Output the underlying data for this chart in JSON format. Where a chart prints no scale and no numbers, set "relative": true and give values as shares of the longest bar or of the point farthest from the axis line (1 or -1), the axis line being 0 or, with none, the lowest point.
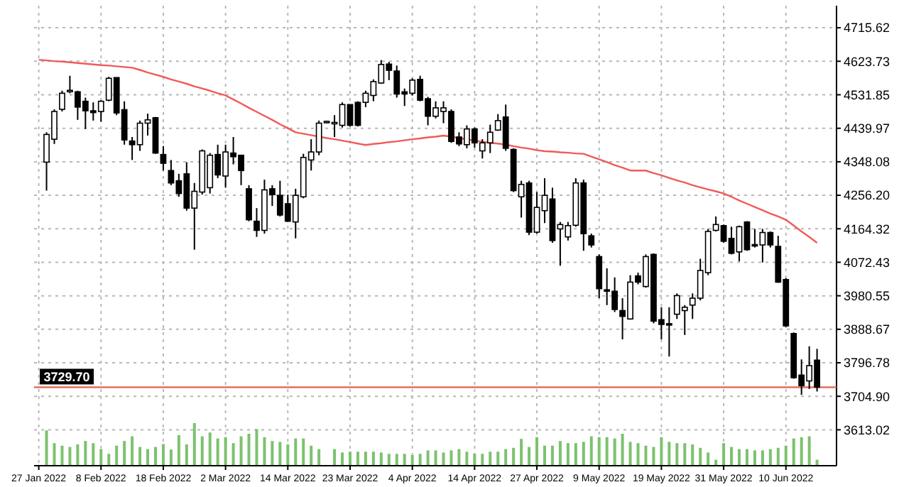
{
  "chart_data": [
    {
      "type": "candlestick",
      "categories": [
        "27 Jan 2022",
        null,
        null,
        null,
        null,
        null,
        null,
        null,
        "8 Feb 2022",
        null,
        null,
        null,
        null,
        null,
        null,
        null,
        "18 Feb 2022",
        null,
        null,
        null,
        null,
        null,
        null,
        null,
        "2 Mar 2022",
        null,
        null,
        null,
        null,
        null,
        null,
        null,
        "14 Mar 2022",
        null,
        null,
        null,
        null,
        null,
        null,
        null,
        "23 Mar 2022",
        null,
        null,
        null,
        null,
        null,
        null,
        null,
        "4 Apr 2022",
        null,
        null,
        null,
        null,
        null,
        null,
        null,
        "14 Apr 2022",
        null,
        null,
        null,
        null,
        null,
        null,
        null,
        "27 Apr 2022",
        null,
        null,
        null,
        null,
        null,
        null,
        null,
        "9 May 2022",
        null,
        null,
        null,
        null,
        null,
        null,
        null,
        "19 May 2022",
        null,
        null,
        null,
        null,
        null,
        null,
        null,
        "31 May 2022",
        null,
        null,
        null,
        null,
        null,
        null,
        null,
        "10 Jun 2022",
        null,
        null,
        null,
        null
      ],
      "ohlc": [
        null,
        [
          4347,
          4429,
          4269,
          4423
        ],
        [
          4410,
          4492,
          4397,
          4486
        ],
        [
          4492,
          4543,
          4486,
          4536
        ],
        [
          4541,
          4584,
          4536,
          4544
        ],
        [
          4540,
          4543,
          4463,
          4498
        ],
        [
          4514,
          4524,
          4438,
          4488
        ],
        [
          4488,
          4511,
          4461,
          4483
        ],
        [
          4486,
          4517,
          4458,
          4514
        ],
        [
          4517,
          4581,
          4514,
          4577
        ],
        [
          4579,
          4579,
          4476,
          4482
        ],
        [
          4491,
          4514,
          4395,
          4408
        ],
        [
          4405,
          4416,
          4353,
          4395
        ],
        [
          4395,
          4461,
          4378,
          4454
        ],
        [
          4454,
          4480,
          4420,
          4463
        ],
        [
          4469,
          4471,
          4370,
          4372
        ],
        [
          4368,
          4391,
          4324,
          4344
        ],
        [
          4324,
          4353,
          4284,
          4290
        ],
        [
          4296,
          4315,
          4252,
          4261
        ],
        [
          4315,
          4347,
          4214,
          4221
        ],
        [
          4221,
          4290,
          4107,
          4267
        ],
        [
          4265,
          4382,
          4258,
          4378
        ],
        [
          4277,
          4372,
          4261,
          4366
        ],
        [
          4368,
          4395,
          4303,
          4312
        ],
        [
          4309,
          4395,
          4277,
          4375
        ],
        [
          4372,
          4416,
          4341,
          4362
        ],
        [
          4366,
          4366,
          4284,
          4324
        ],
        [
          4274,
          4284,
          4185,
          4189
        ],
        [
          4185,
          4221,
          4142,
          4160
        ],
        [
          4160,
          4299,
          4151,
          4271
        ],
        [
          4274,
          4284,
          4227,
          4258
        ],
        [
          4256,
          4296,
          4198,
          4202
        ],
        [
          4233,
          4258,
          4183,
          4185
        ],
        [
          4183,
          4274,
          4138,
          4256
        ],
        [
          4252,
          4370,
          4248,
          4360
        ],
        [
          4353,
          4410,
          4324,
          4375
        ],
        [
          4375,
          4461,
          4366,
          4454
        ],
        [
          4457,
          4461,
          4454,
          4459
        ],
        [
          4453,
          4476,
          4416,
          4456
        ],
        [
          4448,
          4511,
          4442,
          4505
        ],
        [
          4505,
          4505,
          4445,
          4448
        ],
        [
          4511,
          4514,
          4445,
          4448
        ],
        [
          4511,
          4543,
          4498,
          4536
        ],
        [
          4530,
          4574,
          4514,
          4568
        ],
        [
          4564,
          4627,
          4562,
          4615
        ],
        [
          4616,
          4622,
          4572,
          4599
        ],
        [
          4597,
          4612,
          4524,
          4534
        ],
        [
          4540,
          4549,
          4501,
          4534
        ],
        [
          4536,
          4577,
          4530,
          4572
        ],
        [
          4574,
          4584,
          4514,
          4517
        ],
        [
          4521,
          4526,
          4448,
          4473
        ],
        [
          4473,
          4514,
          4467,
          4496
        ],
        [
          4486,
          4514,
          4454,
          4496
        ],
        [
          4486,
          4492,
          4400,
          4404
        ],
        [
          4416,
          4429,
          4391,
          4397
        ],
        [
          4395,
          4448,
          4385,
          4438
        ],
        [
          4438,
          4442,
          4387,
          4400
        ],
        [
          4378,
          4410,
          4357,
          4400
        ],
        [
          4400,
          4450,
          4372,
          4429
        ],
        [
          4435,
          4479,
          4433,
          4461
        ],
        [
          4471,
          4505,
          4378,
          4385
        ],
        [
          4382,
          4385,
          4265,
          4269
        ],
        [
          4252,
          4296,
          4195,
          4286
        ],
        [
          4290,
          4296,
          4147,
          4155
        ],
        [
          4155,
          4265,
          4151,
          4223
        ],
        [
          4214,
          4303,
          4180,
          4256
        ],
        [
          4246,
          4277,
          4126,
          4132
        ],
        [
          4164,
          4183,
          4063,
          4176
        ],
        [
          4142,
          4183,
          4132,
          4173
        ],
        [
          4174,
          4303,
          4170,
          4290
        ],
        [
          4290,
          4299,
          4104,
          4151
        ],
        [
          4145,
          4151,
          4113,
          4120
        ],
        [
          4088,
          4094,
          3974,
          4000
        ],
        [
          3997,
          4056,
          3955,
          3994
        ],
        [
          3993,
          4031,
          3936,
          3943
        ],
        [
          3940,
          3974,
          3861,
          3924
        ],
        [
          3917,
          4037,
          3915,
          4018
        ],
        [
          4035,
          4044,
          4012,
          4018
        ],
        [
          4006,
          4094,
          4003,
          4088
        ],
        [
          4094,
          4097,
          3905,
          3911
        ],
        [
          3915,
          3949,
          3861,
          3902
        ],
        [
          3904,
          3949,
          3814,
          3901
        ],
        [
          3930,
          3987,
          3917,
          3981
        ],
        [
          3940,
          3955,
          3873,
          3949
        ],
        [
          3955,
          3987,
          3917,
          3974
        ],
        [
          3974,
          4082,
          3968,
          4050
        ],
        [
          4044,
          4164,
          4037,
          4157
        ],
        [
          4160,
          4198,
          4157,
          4176
        ],
        [
          4173,
          4176,
          4126,
          4130
        ],
        [
          4138,
          4170,
          4094,
          4097
        ],
        [
          4101,
          4173,
          4075,
          4170
        ],
        [
          4183,
          4185,
          4104,
          4107
        ],
        [
          4121,
          4164,
          4113,
          4118
        ],
        [
          4120,
          4164,
          4072,
          4154
        ],
        [
          4154,
          4157,
          4113,
          4120
        ],
        [
          4116,
          4145,
          4016,
          4018
        ],
        [
          4025,
          4029,
          3895,
          3898
        ],
        [
          3877,
          3880,
          3753,
          3756
        ],
        [
          3763,
          3806,
          3709,
          3734
        ],
        [
          3747,
          3842,
          3725,
          3789
        ],
        [
          3804,
          3835,
          3718,
          3730
        ]
      ],
      "series": [
        {
          "type": "line",
          "color": "#f05a5a",
          "values": [
            4628,
            4626,
            4624,
            4623,
            4621,
            4619,
            4617,
            4615,
            4613,
            4612,
            4610,
            4608,
            4606,
            4600,
            4593,
            4587,
            4581,
            4574,
            4568,
            4562,
            4555,
            4549,
            4543,
            4536,
            4530,
            4519,
            4508,
            4496,
            4485,
            4474,
            4463,
            4451,
            4440,
            4429,
            4425,
            4421,
            4417,
            4413,
            4410,
            4406,
            4402,
            4398,
            4394,
            4397,
            4399,
            4402,
            4404,
            4407,
            4410,
            4412,
            4415,
            4417,
            4420,
            4417,
            4413,
            4410,
            4406,
            4403,
            4400,
            4398,
            4395,
            4391,
            4387,
            4384,
            4380,
            4377,
            4376,
            4374,
            4373,
            4371,
            4370,
            4362,
            4355,
            4347,
            4339,
            4332,
            4324,
            4324,
            4324,
            4317,
            4311,
            4304,
            4297,
            4291,
            4284,
            4278,
            4272,
            4267,
            4261,
            4252,
            4242,
            4233,
            4224,
            4215,
            4206,
            4198,
            4189,
            4173,
            4157,
            4142,
            4126
          ]
        }
      ],
      "ylim": [
        3514.5,
        4776.2
      ],
      "yticks": [
        3613.02,
        {
          "value": 3704.9,
          "label": "3704.90"
        },
        3796.78,
        3888.67,
        3980.55,
        4072.43,
        4164.32,
        {
          "value": 4256.2,
          "label": "4256.20"
        },
        4348.08,
        4439.97,
        4531.85,
        4623.73,
        4715.62
      ],
      "grid": true,
      "ref_lines": [
        {
          "axis": "y",
          "value": 3729.7,
          "label": "3729.70",
          "color": "#e0705c"
        }
      ]
    },
    {
      "type": "bar",
      "relative": true,
      "color": "#7cc26e",
      "categories": [
        null,
        null,
        null,
        null,
        null,
        null,
        null,
        null,
        null,
        null,
        null,
        null,
        null,
        null,
        null,
        null,
        null,
        null,
        null,
        null,
        null,
        null,
        null,
        null,
        null,
        null,
        null,
        null,
        null,
        null,
        null,
        null,
        null,
        null,
        null,
        null,
        null,
        null,
        null,
        null,
        null,
        null,
        null,
        null,
        null,
        null,
        null,
        null,
        null,
        null,
        null,
        null,
        null,
        null,
        null,
        null,
        null,
        null,
        null,
        null,
        null,
        null,
        null,
        null,
        null,
        null,
        null,
        null,
        null,
        null,
        null,
        null,
        null,
        null,
        null,
        null,
        null,
        null,
        null,
        null,
        null,
        null,
        null,
        null,
        null,
        null,
        null,
        null,
        null,
        null,
        null,
        null,
        null,
        null,
        null,
        null,
        null,
        null,
        null,
        null,
        null
      ],
      "values": [
        null,
        0.83,
        0.53,
        0.47,
        0.44,
        0.5,
        0.58,
        0.53,
        0.39,
        0.28,
        0.47,
        0.58,
        0.69,
        0.44,
        0.39,
        0.44,
        0.51,
        0.38,
        0.72,
        0.5,
        1,
        0.69,
        0.78,
        0.64,
        0.67,
        0.53,
        0.69,
        0.75,
        0.86,
        0.67,
        0.58,
        0.56,
        0.5,
        0.64,
        0.64,
        0.47,
        0.39,
        null,
        0.39,
        0.31,
        0.33,
        0.33,
        0.33,
        0.33,
        0.31,
        0.28,
        0.28,
        0.28,
        0.25,
        0.28,
        0.36,
        0.36,
        0.31,
        0.36,
        0.39,
        0.33,
        0.28,
        0.28,
        0.33,
        0.33,
        0.39,
        0.42,
        0.63,
        0.44,
        0.67,
        0.47,
        0.47,
        0.58,
        0.53,
        0.53,
        0.56,
        0.69,
        0.67,
        0.67,
        0.64,
        0.75,
        0.56,
        0.53,
        0.47,
        0.44,
        0.67,
        0.56,
        0.53,
        0.53,
        0.5,
        0.42,
        0.31,
        0.14,
        0.53,
        0.44,
        0.39,
        0.39,
        0.36,
        0.36,
        0.39,
        0.42,
        0.47,
        0.64,
        0.67,
        0.69,
        0.14
      ]
    }
  ]
}
